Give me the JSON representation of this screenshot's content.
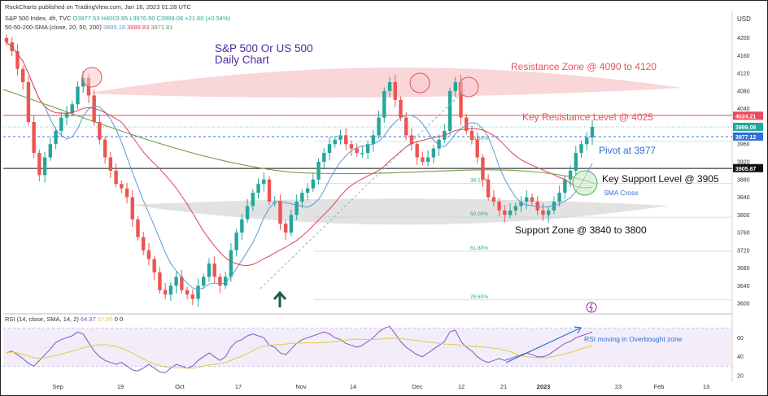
{
  "header": {
    "publisher": "RockCharts published on TradingView.com, Jan 16, 2023 01:28 UTC",
    "symbol_line": "S&P 500 Index, 4h, TVC",
    "ohlc": {
      "o": "O3977.53",
      "h": "H4003.95",
      "l": "L3976.90",
      "c": "C3999.08",
      "chg": "+21.60 (+0.54%)"
    },
    "sma_line": "50-50-200-SMA (close, 20, 50, 200)",
    "sma_vals": [
      "3895.16",
      "3889.83",
      "3871.81"
    ],
    "currency": "USD"
  },
  "rsi_header": {
    "label": "RSI (14, close, SMA, 14, 2)",
    "vals": [
      "64.97",
      "57.95",
      "0",
      "0"
    ]
  },
  "colors": {
    "up": "#26a69a",
    "down": "#ef5350",
    "sma20": "#5b9bd5",
    "sma50": "#e0405a",
    "sma200": "#6f9a4a",
    "resistance": "#e6555a",
    "pivot": "#2f6fd6",
    "title": "#4b2a9a",
    "rsi": "#7e57c2",
    "rsi_sma": "#e6c84a"
  },
  "chart_data": {
    "type": "candlestick",
    "title": "S&P 500 Or US 500\nDaily Chart",
    "ylim": [
      3580,
      4260
    ],
    "yticks": [
      3600,
      3640,
      3680,
      3720,
      3760,
      3800,
      3840,
      3880,
      3920,
      3960,
      4000,
      4040,
      4080,
      4120,
      4160,
      4200
    ],
    "price_badges": [
      {
        "value": "4024.21",
        "color": "#e84a5a"
      },
      {
        "value": "3999.08",
        "color": "#26a69a"
      },
      {
        "value": "3977.12",
        "color": "#2f6fd6"
      },
      {
        "value": "3905.67",
        "color": "#111111"
      }
    ],
    "x_labels": [
      "Sep",
      "19",
      "Oct",
      "17",
      "Nov",
      "14",
      "Dec",
      "12",
      "21",
      "2023",
      "23",
      "Feb",
      "13"
    ],
    "levels": [
      {
        "name": "Key Resistance Level @ 4025",
        "value": 4025,
        "style": "solid"
      },
      {
        "name": "Pivot at 3977",
        "value": 3977,
        "style": "dashed"
      },
      {
        "name": "Key Support Level @ 3905",
        "value": 3905,
        "style": "solid"
      }
    ],
    "zones": [
      {
        "name": "Resistance Zone @ 4090 to 4120",
        "from": 4090,
        "to": 4120
      },
      {
        "name": "Support Zone @ 3840 to 3800",
        "from": 3800,
        "to": 3840
      }
    ],
    "fib_levels": [
      {
        "label": "23.60%",
        "value": 3966
      },
      {
        "label": "38.20%",
        "value": 3871
      },
      {
        "label": "50.00%",
        "value": 3795
      },
      {
        "label": "61.80%",
        "value": 3718
      },
      {
        "label": "78.60%",
        "value": 3608
      }
    ],
    "annotations": [
      "SMA Cross",
      "RSI moving in Overbought zone"
    ],
    "close_series": [
      4190,
      4170,
      4130,
      4100,
      4010,
      3940,
      3890,
      3930,
      3960,
      3990,
      4020,
      4030,
      4050,
      4090,
      4110,
      4070,
      4010,
      3970,
      3930,
      3900,
      3870,
      3860,
      3840,
      3790,
      3750,
      3720,
      3700,
      3670,
      3630,
      3620,
      3640,
      3660,
      3630,
      3620,
      3610,
      3640,
      3660,
      3690,
      3660,
      3640,
      3660,
      3720,
      3760,
      3790,
      3820,
      3850,
      3870,
      3880,
      3830,
      3830,
      3780,
      3760,
      3800,
      3830,
      3850,
      3860,
      3880,
      3920,
      3940,
      3960,
      3970,
      3980,
      3960,
      3950,
      3940,
      3940,
      3960,
      3980,
      4020,
      4080,
      4100,
      4060,
      4020,
      3980,
      3960,
      3930,
      3920,
      3930,
      3950,
      3970,
      3990,
      4080,
      4100,
      4020,
      3990,
      3970,
      3930,
      3880,
      3840,
      3830,
      3810,
      3800,
      3810,
      3820,
      3830,
      3840,
      3830,
      3810,
      3800,
      3810,
      3830,
      3850,
      3880,
      3900,
      3940,
      3960,
      3975,
      3999
    ],
    "rsi": {
      "ylim": [
        20,
        80
      ],
      "yticks": [
        20,
        40,
        60
      ],
      "overbought": 70,
      "oversold": 30,
      "values": [
        44,
        46,
        42,
        38,
        33,
        30,
        36,
        42,
        48,
        55,
        58,
        60,
        62,
        66,
        64,
        55,
        46,
        40,
        36,
        34,
        32,
        34,
        30,
        26,
        25,
        28,
        32,
        28,
        24,
        23,
        28,
        32,
        30,
        28,
        30,
        36,
        40,
        44,
        40,
        36,
        40,
        50,
        56,
        58,
        62,
        64,
        62,
        60,
        52,
        50,
        44,
        42,
        48,
        54,
        58,
        60,
        62,
        64,
        66,
        64,
        60,
        58,
        54,
        52,
        50,
        52,
        56,
        60,
        66,
        70,
        72,
        64,
        56,
        50,
        46,
        42,
        40,
        44,
        48,
        52,
        56,
        66,
        68,
        56,
        50,
        46,
        40,
        36,
        34,
        36,
        38,
        36,
        38,
        40,
        42,
        44,
        42,
        40,
        40,
        42,
        46,
        50,
        54,
        56,
        60,
        62,
        64,
        66
      ]
    }
  }
}
